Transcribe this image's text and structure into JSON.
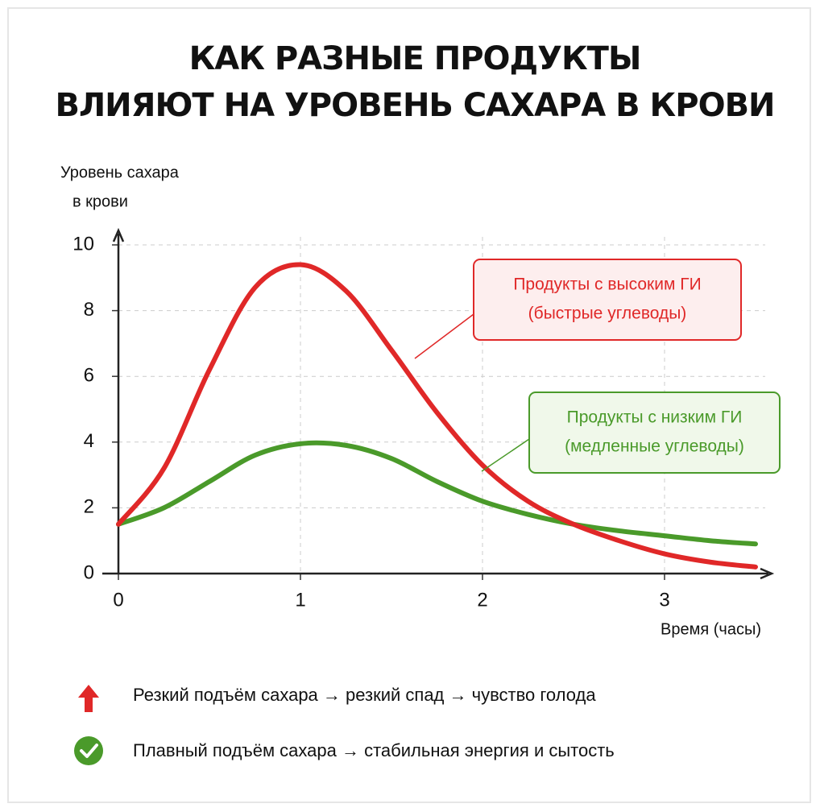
{
  "chart_data": {
    "type": "line",
    "title": [
      "КАК РАЗНЫЕ ПРОДУКТЫ",
      "ВЛИЯЮТ НА УРОВЕНЬ САХАРА В КРОВИ"
    ],
    "y_label": [
      "Уровень сахара",
      "в крови"
    ],
    "x_label": "Время (часы)",
    "x": [
      0,
      0.25,
      0.5,
      0.75,
      1,
      1.25,
      1.5,
      1.75,
      2,
      2.25,
      2.5,
      2.75,
      3,
      3.25,
      3.5
    ],
    "series": [
      {
        "name": "Продукты с высоким ГИ",
        "description": "(быстрые углеводы)",
        "color": "#e02828",
        "values": [
          1.5,
          3.2,
          6.2,
          8.7,
          9.4,
          8.6,
          6.8,
          4.9,
          3.3,
          2.2,
          1.5,
          1.0,
          0.6,
          0.35,
          0.2
        ]
      },
      {
        "name": "Продукты с низким ГИ",
        "description": "(медленные углеводы)",
        "color": "#4a9a2a",
        "values": [
          1.5,
          2.0,
          2.8,
          3.6,
          3.95,
          3.9,
          3.5,
          2.8,
          2.2,
          1.8,
          1.5,
          1.3,
          1.15,
          1.0,
          0.9
        ]
      }
    ],
    "xlim": [
      0,
      3.5
    ],
    "ylim": [
      0,
      10
    ],
    "xticks": [
      0,
      1,
      2,
      3
    ],
    "yticks": [
      0,
      2,
      4,
      6,
      8,
      10
    ],
    "grid": true,
    "notes": [
      "Резкий подъём сахара → резкий спад → чувство голода",
      "Плавный подъём сахара → стабильная энергия и сытость"
    ]
  }
}
